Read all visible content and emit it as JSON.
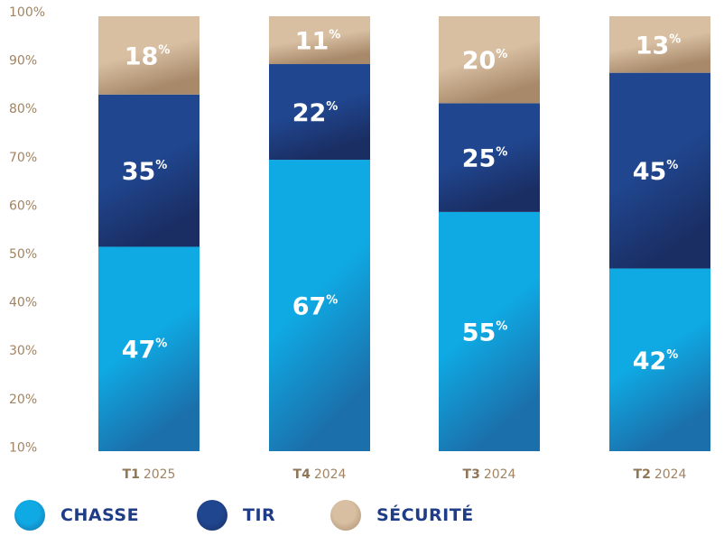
{
  "colors": {
    "chasse": "#0fa9e3",
    "chasse_dark": "#1b6faa",
    "tir": "#20468f",
    "tir_dark": "#1a2e63",
    "securite": "#d8bfa2",
    "securite_dark": "#a8896a",
    "axis_text": "#a08463",
    "legend_text": "#1f3c86"
  },
  "legend": {
    "items": [
      {
        "label": "CHASSE",
        "color_key": "chasse"
      },
      {
        "label": "TIR",
        "color_key": "tir"
      },
      {
        "label": "SÉCURITÉ",
        "color_key": "securite"
      }
    ]
  },
  "chart_data": {
    "type": "bar",
    "stacked": true,
    "categories": [
      {
        "quarter": "T1",
        "year": "2025"
      },
      {
        "quarter": "T4",
        "year": "2024"
      },
      {
        "quarter": "T3",
        "year": "2024"
      },
      {
        "quarter": "T2",
        "year": "2024"
      }
    ],
    "series": [
      {
        "name": "CHASSE",
        "color_key": "chasse",
        "values": [
          47,
          67,
          55,
          42
        ]
      },
      {
        "name": "TIR",
        "color_key": "tir",
        "values": [
          35,
          22,
          25,
          45
        ]
      },
      {
        "name": "SÉCURITÉ",
        "color_key": "securite",
        "values": [
          18,
          11,
          20,
          13
        ]
      }
    ],
    "y_ticks": [
      "100%",
      "90%",
      "80%",
      "70%",
      "60%",
      "50%",
      "40%",
      "30%",
      "20%",
      "10%"
    ],
    "label_suffix": "%",
    "ylim": [
      0,
      100
    ],
    "grid": false,
    "legend_position": "bottom"
  }
}
